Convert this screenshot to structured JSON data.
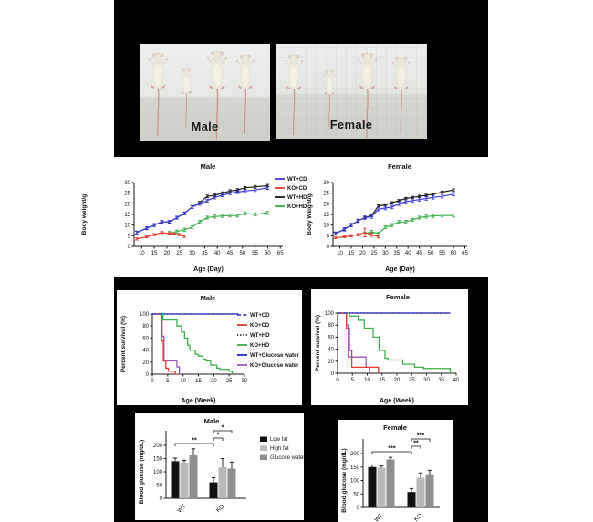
{
  "photos": {
    "male_label": "Male",
    "female_label": "Female"
  },
  "colors": {
    "wt_cd": "#3b3bd8",
    "ko_cd": "#e23a30",
    "wt_hd": "#1a1a1a",
    "ko_hd": "#3cb04a",
    "wt_glucose": "#2424cf",
    "ko_glucose": "#9b59b6",
    "bar_low_fat": "#111111",
    "bar_high_fat": "#b9b9b9",
    "bar_glucose_water": "#8f8f8f"
  },
  "chart_data": [
    {
      "id": "male_bodyweight",
      "type": "line",
      "title": "Male",
      "xlabel": "Age (Day)",
      "ylabel": "Body weight/g",
      "xlim": [
        7,
        66
      ],
      "ylim": [
        0,
        30
      ],
      "xticks": [
        10,
        15,
        20,
        25,
        30,
        35,
        40,
        45,
        50,
        55,
        60,
        65
      ],
      "yticks": [
        0,
        5,
        10,
        15,
        20,
        25,
        30
      ],
      "legend_position": "right",
      "series": [
        {
          "name": "WT+CD",
          "color": "#3b3bd8",
          "style": "solid",
          "x": [
            8,
            12,
            15,
            18,
            21,
            24,
            27,
            30,
            33,
            36,
            39,
            42,
            45,
            48,
            51,
            55,
            60
          ],
          "y": [
            6.5,
            8.5,
            10,
            11.5,
            11.5,
            13.5,
            15.5,
            18.5,
            20,
            21.5,
            23,
            24,
            25,
            25.5,
            26,
            26.5,
            27.5
          ],
          "err": 0.7
        },
        {
          "name": "KO+CD",
          "color": "#e23a30",
          "style": "solid",
          "x": [
            8,
            12,
            15,
            18,
            21,
            23,
            25,
            27
          ],
          "y": [
            3.5,
            4.5,
            5.5,
            6.5,
            6,
            5.8,
            5.5,
            4.7
          ],
          "err": 0.5
        },
        {
          "name": "WT+HD",
          "color": "#1a1a1a",
          "style": "solid",
          "x": [
            8,
            12,
            15,
            18,
            21,
            24,
            27,
            30,
            33,
            36,
            39,
            42,
            45,
            48,
            51,
            55,
            60
          ],
          "y": [
            6.5,
            8.5,
            10,
            11.5,
            11.5,
            13.5,
            15.5,
            18.5,
            20.5,
            23.5,
            24,
            25,
            26,
            26.5,
            27.5,
            28,
            28.5
          ],
          "err": 0.6
        },
        {
          "name": "KO+HD",
          "color": "#3cb04a",
          "style": "solid",
          "x": [
            21,
            24,
            27,
            30,
            33,
            36,
            39,
            42,
            45,
            48,
            51,
            55,
            60
          ],
          "y": [
            6.3,
            7,
            7.8,
            9,
            11.5,
            13.5,
            14,
            14.3,
            14.5,
            14.5,
            15.5,
            15,
            15.7
          ],
          "err": 0.7
        }
      ]
    },
    {
      "id": "female_bodyweight",
      "type": "line",
      "title": "Female",
      "xlabel": "Age (Day)",
      "ylabel": "Body Weight/g",
      "xlim": [
        7,
        66
      ],
      "ylim": [
        0,
        30
      ],
      "xticks": [
        10,
        15,
        20,
        25,
        30,
        35,
        40,
        45,
        50,
        55,
        60,
        65
      ],
      "yticks": [
        0,
        5,
        10,
        15,
        20,
        25,
        30
      ],
      "legend_position": "none",
      "series": [
        {
          "name": "WT+CD",
          "color": "#3b3bd8",
          "style": "solid",
          "x": [
            8,
            12,
            15,
            18,
            21,
            24,
            27,
            30,
            33,
            36,
            39,
            42,
            45,
            48,
            51,
            55,
            60
          ],
          "y": [
            6,
            8,
            10,
            12,
            13.5,
            14,
            17.5,
            18,
            18.5,
            20,
            21,
            21.5,
            22,
            22.5,
            23,
            23.5,
            24.5
          ],
          "err": 0.8
        },
        {
          "name": "KO+CD",
          "color": "#e23a30",
          "style": "solid",
          "x": [
            8,
            12,
            15,
            18,
            21,
            24,
            27
          ],
          "y": [
            4,
            4.5,
            5,
            5.5,
            6.5,
            5.5,
            4.5
          ],
          "err": [
            0.4,
            0.4,
            0.5,
            0.6,
            2,
            0.8,
            0.6
          ]
        },
        {
          "name": "WT+HD",
          "color": "#1a1a1a",
          "style": "solid",
          "x": [
            8,
            12,
            15,
            18,
            21,
            24,
            27,
            30,
            33,
            36,
            39,
            42,
            45,
            48,
            51,
            55,
            60
          ],
          "y": [
            6,
            8,
            10,
            12,
            13.5,
            14.5,
            19,
            19.5,
            20.5,
            21.5,
            22.5,
            23,
            23.5,
            24,
            24.5,
            25.5,
            26.5
          ],
          "err": 0.5
        },
        {
          "name": "KO+HD",
          "color": "#3cb04a",
          "style": "solid",
          "x": [
            21,
            24,
            27,
            30,
            33,
            36,
            39,
            42,
            45,
            48,
            51,
            55,
            60
          ],
          "y": [
            6,
            6.8,
            6,
            9,
            10,
            11.5,
            11.5,
            12.5,
            13.5,
            14,
            14.3,
            14.5,
            14.5
          ],
          "err": 0.7
        }
      ]
    },
    {
      "id": "male_survival",
      "type": "step",
      "title": "Male",
      "xlabel": "Age (Week)",
      "ylabel": "Percent survival (%)",
      "xlim": [
        0,
        30
      ],
      "ylim": [
        0,
        100
      ],
      "xticks": [
        0,
        5,
        10,
        15,
        20,
        25,
        30
      ],
      "yticks": [
        0,
        20,
        40,
        60,
        80,
        100
      ],
      "legend_position": "right",
      "series": [
        {
          "name": "WT+CD",
          "color": "#3b3bd8",
          "style": "dashed",
          "points": [
            [
              0,
              100
            ],
            [
              28,
              100
            ]
          ]
        },
        {
          "name": "KO+CD",
          "color": "#e23a30",
          "style": "solid",
          "points": [
            [
              0,
              100
            ],
            [
              3,
              100
            ],
            [
              3,
              55
            ],
            [
              3.6,
              55
            ],
            [
              3.6,
              22
            ],
            [
              4.4,
              22
            ],
            [
              4.4,
              10
            ],
            [
              5.2,
              10
            ],
            [
              5.2,
              5
            ],
            [
              7.5,
              5
            ],
            [
              7.5,
              0
            ],
            [
              8.2,
              0
            ]
          ]
        },
        {
          "name": "WT+HD",
          "color": "#1a1a1a",
          "style": "dotted",
          "points": [
            [
              0,
              100
            ],
            [
              28,
              100
            ]
          ]
        },
        {
          "name": "KO+HD",
          "color": "#3cb04a",
          "style": "solid",
          "points": [
            [
              0,
              100
            ],
            [
              3.5,
              100
            ],
            [
              3.5,
              90
            ],
            [
              8,
              90
            ],
            [
              8,
              80
            ],
            [
              9.5,
              80
            ],
            [
              9.5,
              70
            ],
            [
              10.5,
              70
            ],
            [
              10.5,
              60
            ],
            [
              11.5,
              60
            ],
            [
              11.5,
              48
            ],
            [
              12.2,
              48
            ],
            [
              12.2,
              40
            ],
            [
              14,
              40
            ],
            [
              14,
              33
            ],
            [
              15,
              33
            ],
            [
              15,
              30
            ],
            [
              16.5,
              30
            ],
            [
              16.5,
              25
            ],
            [
              17.5,
              25
            ],
            [
              17.5,
              22
            ],
            [
              19,
              22
            ],
            [
              19,
              15
            ],
            [
              21,
              15
            ],
            [
              21,
              10
            ],
            [
              22,
              10
            ],
            [
              22,
              8
            ],
            [
              25,
              8
            ],
            [
              25,
              5
            ],
            [
              26,
              5
            ],
            [
              26,
              0
            ]
          ]
        },
        {
          "name": "WT+Glucose water",
          "color": "#2424cf",
          "style": "solid",
          "points": [
            [
              0,
              100
            ],
            [
              28,
              100
            ]
          ]
        },
        {
          "name": "KO+Glucose water",
          "color": "#9b59b6",
          "style": "solid",
          "points": [
            [
              0,
              100
            ],
            [
              3.2,
              100
            ],
            [
              3.2,
              63
            ],
            [
              3.8,
              63
            ],
            [
              3.8,
              22
            ],
            [
              8,
              22
            ],
            [
              8,
              12
            ],
            [
              8.8,
              12
            ],
            [
              8.8,
              0
            ]
          ]
        }
      ]
    },
    {
      "id": "female_survival",
      "type": "step",
      "title": "Female",
      "xlabel": "Age (Week)",
      "ylabel": "Percent survival (%)",
      "xlim": [
        0,
        40
      ],
      "ylim": [
        0,
        100
      ],
      "xticks": [
        0,
        5,
        10,
        15,
        20,
        25,
        30,
        35,
        40
      ],
      "yticks": [
        0,
        20,
        40,
        60,
        80,
        100
      ],
      "legend_position": "none",
      "series": [
        {
          "name": "WT+CD",
          "color": "#3b3bd8",
          "style": "dashed",
          "points": [
            [
              0,
              100
            ],
            [
              38,
              100
            ]
          ]
        },
        {
          "name": "KO+CD",
          "color": "#e23a30",
          "style": "solid",
          "points": [
            [
              0,
              100
            ],
            [
              3,
              100
            ],
            [
              3,
              75
            ],
            [
              4,
              75
            ],
            [
              4,
              38
            ],
            [
              4.8,
              38
            ],
            [
              4.8,
              10
            ],
            [
              13.8,
              10
            ],
            [
              13.8,
              0
            ]
          ]
        },
        {
          "name": "WT+HD",
          "color": "#1a1a1a",
          "style": "dotted",
          "points": [
            [
              0,
              100
            ],
            [
              38,
              100
            ]
          ]
        },
        {
          "name": "KO+HD",
          "color": "#3cb04a",
          "style": "solid",
          "points": [
            [
              0,
              100
            ],
            [
              4,
              100
            ],
            [
              4,
              95
            ],
            [
              7,
              95
            ],
            [
              7,
              88
            ],
            [
              9,
              88
            ],
            [
              9,
              75
            ],
            [
              12,
              75
            ],
            [
              12,
              60
            ],
            [
              14,
              60
            ],
            [
              14,
              38
            ],
            [
              16,
              38
            ],
            [
              16,
              25
            ],
            [
              17,
              25
            ],
            [
              17,
              22
            ],
            [
              22,
              22
            ],
            [
              22,
              15
            ],
            [
              26,
              15
            ],
            [
              26,
              10
            ],
            [
              29,
              10
            ],
            [
              29,
              8
            ],
            [
              38,
              8
            ],
            [
              38,
              0
            ]
          ]
        },
        {
          "name": "WT+Glucose water",
          "color": "#2424cf",
          "style": "solid",
          "points": [
            [
              0,
              100
            ],
            [
              38,
              100
            ]
          ]
        },
        {
          "name": "KO+Glucose water",
          "color": "#9b59b6",
          "style": "solid",
          "points": [
            [
              0,
              100
            ],
            [
              3,
              100
            ],
            [
              3,
              80
            ],
            [
              3.6,
              80
            ],
            [
              3.6,
              27
            ],
            [
              9.6,
              27
            ],
            [
              9.6,
              10
            ],
            [
              10.8,
              10
            ],
            [
              10.8,
              0
            ]
          ]
        }
      ]
    },
    {
      "id": "male_glucose",
      "type": "bar",
      "title": "Male",
      "ylabel": "Blood glucose (mg/dL)",
      "categories": [
        "WT",
        "KO"
      ],
      "ylim": [
        0,
        200
      ],
      "yticks": [
        0,
        50,
        100,
        150,
        200
      ],
      "legend_position": "right",
      "series": [
        {
          "name": "Low fat",
          "color": "#111111",
          "values": [
            140,
            60
          ],
          "errors": [
            12,
            18
          ]
        },
        {
          "name": "High fat",
          "color": "#b9b9b9",
          "values": [
            135,
            117
          ],
          "errors": [
            8,
            33
          ]
        },
        {
          "name": "Glucose water",
          "color": "#8f8f8f",
          "values": [
            162,
            112
          ],
          "errors": [
            25,
            25
          ]
        }
      ],
      "significance": [
        {
          "label": "**",
          "x1": [
            0,
            0
          ],
          "x2": [
            1,
            0
          ],
          "row": 0
        },
        {
          "label": "*",
          "x1": [
            1,
            0
          ],
          "x2": [
            1,
            1
          ],
          "row": 1
        },
        {
          "label": "*",
          "x1": [
            1,
            0
          ],
          "x2": [
            1,
            2
          ],
          "row": 2
        }
      ]
    },
    {
      "id": "female_glucose",
      "type": "bar",
      "title": "Female",
      "ylabel": "Blood glucose (mg/dL)",
      "categories": [
        "WT",
        "KO"
      ],
      "ylim": [
        0,
        200
      ],
      "yticks": [
        0,
        50,
        100,
        150,
        200
      ],
      "legend_position": "none",
      "series": [
        {
          "name": "Low fat",
          "color": "#111111",
          "values": [
            150,
            57
          ],
          "errors": [
            8,
            13
          ]
        },
        {
          "name": "High fat",
          "color": "#b9b9b9",
          "values": [
            147,
            110
          ],
          "errors": [
            7,
            18
          ]
        },
        {
          "name": "Glucose water",
          "color": "#8f8f8f",
          "values": [
            178,
            123
          ],
          "errors": [
            8,
            15
          ]
        }
      ],
      "significance": [
        {
          "label": "***",
          "x1": [
            0,
            0
          ],
          "x2": [
            1,
            0
          ],
          "row": 0
        },
        {
          "label": "**",
          "x1": [
            1,
            0
          ],
          "x2": [
            1,
            1
          ],
          "row": 1
        },
        {
          "label": "***",
          "x1": [
            1,
            0
          ],
          "x2": [
            1,
            2
          ],
          "row": 2
        }
      ]
    }
  ]
}
